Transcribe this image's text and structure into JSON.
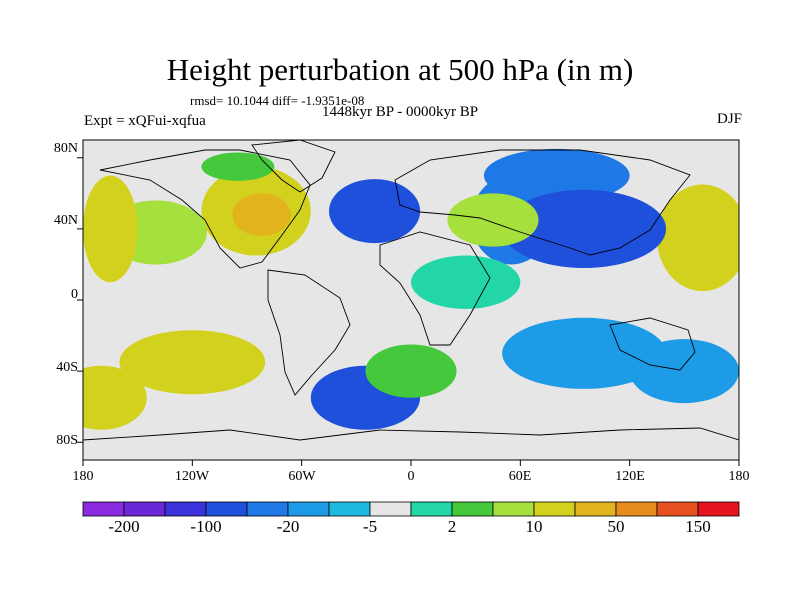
{
  "figure": {
    "title": "Height perturbation at 500 hPa (in m)",
    "stats_line": "rmsd= 10.1044 diff= -1.9351e-08",
    "period": "1448kyr BP - 0000kyr BP",
    "experiment": "Expt = xQFui-xqfua",
    "season": "DJF"
  },
  "axes": {
    "lat_ticks": [
      "80N",
      "40N",
      "0",
      "40S",
      "80S"
    ],
    "lon_ticks": [
      "180",
      "120W",
      "60W",
      "0",
      "60E",
      "120E",
      "180"
    ]
  },
  "colorbar": {
    "colors": [
      "#8a2be2",
      "#6a28d8",
      "#3c32dc",
      "#1e50dc",
      "#1e78e6",
      "#1e9be6",
      "#1eb9e0",
      "#e6e6e6",
      "#22d6a8",
      "#46c83c",
      "#a6e03c",
      "#d2d21e",
      "#e1b41e",
      "#e68c1e",
      "#e6501e",
      "#e6141e"
    ],
    "labels": [
      "-200",
      "-100",
      "-20",
      "-5",
      "2",
      "10",
      "50",
      "150"
    ]
  },
  "field": {
    "background_color": "#e6e6e6",
    "blobs": [
      {
        "lon": 55,
        "lat": 45,
        "rx": 22,
        "ry": 25,
        "level": 4
      },
      {
        "lon": 80,
        "lat": 70,
        "rx": 40,
        "ry": 15,
        "level": 4
      },
      {
        "lon": -85,
        "lat": 50,
        "rx": 30,
        "ry": 25,
        "level": 11
      },
      {
        "lon": -82,
        "lat": 48,
        "rx": 16,
        "ry": 12,
        "level": 12
      },
      {
        "lon": -140,
        "lat": 38,
        "rx": 28,
        "ry": 18,
        "level": 10
      },
      {
        "lon": 160,
        "lat": 35,
        "rx": 25,
        "ry": 30,
        "level": 11
      },
      {
        "lon": -165,
        "lat": 40,
        "rx": 15,
        "ry": 30,
        "level": 11
      },
      {
        "lon": 95,
        "lat": 40,
        "rx": 45,
        "ry": 22,
        "level": 3
      },
      {
        "lon": -20,
        "lat": 50,
        "rx": 25,
        "ry": 18,
        "level": 3
      },
      {
        "lon": 45,
        "lat": 45,
        "rx": 25,
        "ry": 15,
        "level": 10
      },
      {
        "lon": -95,
        "lat": 75,
        "rx": 20,
        "ry": 8,
        "level": 9
      },
      {
        "lon": 95,
        "lat": -30,
        "rx": 45,
        "ry": 20,
        "level": 5
      },
      {
        "lon": -25,
        "lat": -55,
        "rx": 30,
        "ry": 18,
        "level": 3
      },
      {
        "lon": 150,
        "lat": -40,
        "rx": 30,
        "ry": 18,
        "level": 5
      },
      {
        "lon": -120,
        "lat": -35,
        "rx": 40,
        "ry": 18,
        "level": 11
      },
      {
        "lon": -170,
        "lat": -55,
        "rx": 25,
        "ry": 18,
        "level": 11
      },
      {
        "lon": 0,
        "lat": -40,
        "rx": 25,
        "ry": 15,
        "level": 9
      },
      {
        "lon": 30,
        "lat": 10,
        "rx": 30,
        "ry": 15,
        "level": 8
      }
    ]
  }
}
